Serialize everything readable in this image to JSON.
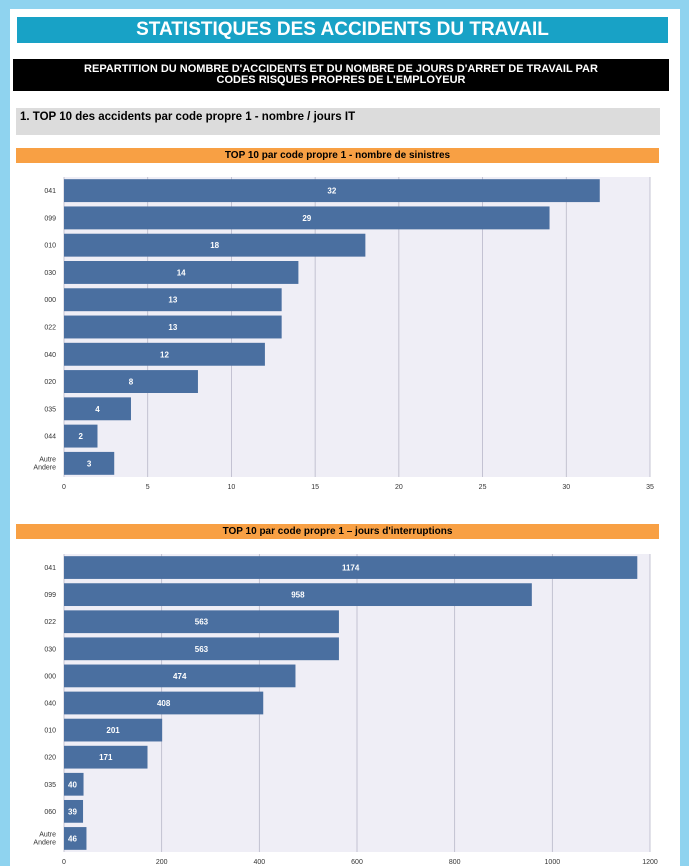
{
  "header": {
    "title": "STATISTIQUES DES ACCIDENTS DU TRAVAIL",
    "subtitle_line1": "REPARTITION DU NOMBRE D'ACCIDENTS ET DU NOMBRE DE JOURS D'ARRET DE TRAVAIL PAR",
    "subtitle_line2": "CODES RISQUES PROPRES DE L'EMPLOYEUR"
  },
  "section": {
    "title": "1. TOP 10 des accidents par code propre 1 - nombre / jours IT"
  },
  "colors": {
    "bar": "#4a6fa0",
    "title_bar": "#18a2c6",
    "chart_header": "#f8a044",
    "plot_bg": "#efeef6",
    "border": "#8fd3ef"
  },
  "chart_data": [
    {
      "type": "bar",
      "orientation": "horizontal",
      "title": "TOP 10 par code propre 1 - nombre de sinistres",
      "categories": [
        "041",
        "099",
        "010",
        "030",
        "000",
        "022",
        "040",
        "020",
        "035",
        "044",
        "Autre Andere"
      ],
      "values": [
        32,
        29,
        18,
        14,
        13,
        13,
        12,
        8,
        4,
        2,
        3
      ],
      "xlim": [
        0,
        35
      ],
      "ticks": [
        0,
        5,
        10,
        15,
        20,
        25,
        30,
        35
      ],
      "grid": true
    },
    {
      "type": "bar",
      "orientation": "horizontal",
      "title": "TOP 10 par code propre 1 – jours d'interruptions",
      "categories": [
        "041",
        "099",
        "022",
        "030",
        "000",
        "040",
        "010",
        "020",
        "035",
        "060",
        "Autre Andere"
      ],
      "values": [
        1174,
        958,
        563,
        563,
        474,
        408,
        201,
        171,
        40,
        39,
        46
      ],
      "xlim": [
        0,
        1200
      ],
      "ticks": [
        0,
        200,
        400,
        600,
        800,
        1000,
        1200
      ],
      "grid": true
    }
  ]
}
